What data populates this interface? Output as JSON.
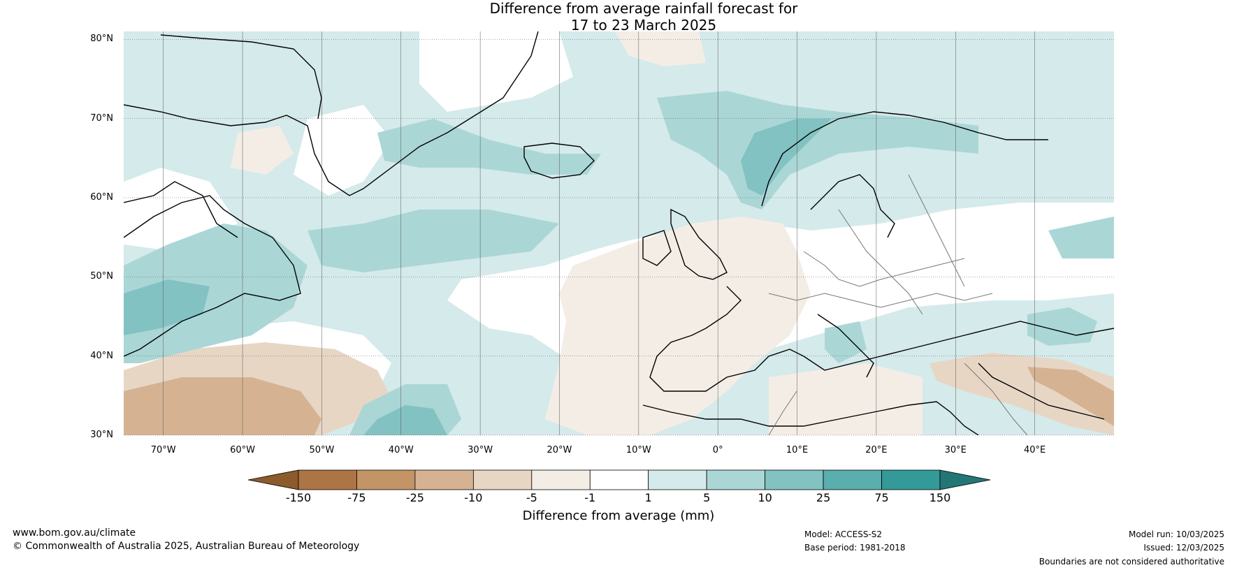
{
  "title": {
    "line1": "Difference from average rainfall forecast for",
    "line2": "17 to 23 March 2025"
  },
  "map": {
    "latitude_labels": [
      "80°N",
      "70°N",
      "60°N",
      "50°N",
      "40°N",
      "30°N"
    ],
    "longitude_labels": [
      "70°W",
      "60°W",
      "50°W",
      "40°W",
      "30°W",
      "20°W",
      "10°W",
      "0°",
      "10°E",
      "20°E",
      "30°E",
      "40°E"
    ],
    "lon_range": [
      -75,
      50
    ],
    "lat_range": [
      30,
      81
    ]
  },
  "colorbar": {
    "ticks": [
      "-150",
      "-75",
      "-25",
      "-10",
      "-5",
      "-1",
      "1",
      "5",
      "10",
      "25",
      "75",
      "150"
    ],
    "colors": [
      "#8c5a2b",
      "#ad7445",
      "#c39466",
      "#d5b392",
      "#e8d6c5",
      "#f4ede6",
      "#ffffff",
      "#d5eaea",
      "#abd6d6",
      "#82c2c2",
      "#5aaeae",
      "#339999",
      "#237676"
    ],
    "label": "Difference from average (mm)"
  },
  "footer": {
    "website": "www.bom.gov.au/climate",
    "copyright": "© Commonwealth of Australia 2025, Australian Bureau of Meteorology",
    "model": "Model: ACCESS-S2",
    "base_period": "Base period: 1981-2018",
    "model_run": "Model run: 10/03/2025",
    "issued": "Issued: 12/03/2025",
    "disclaimer": "Boundaries are not considered authoritative"
  }
}
